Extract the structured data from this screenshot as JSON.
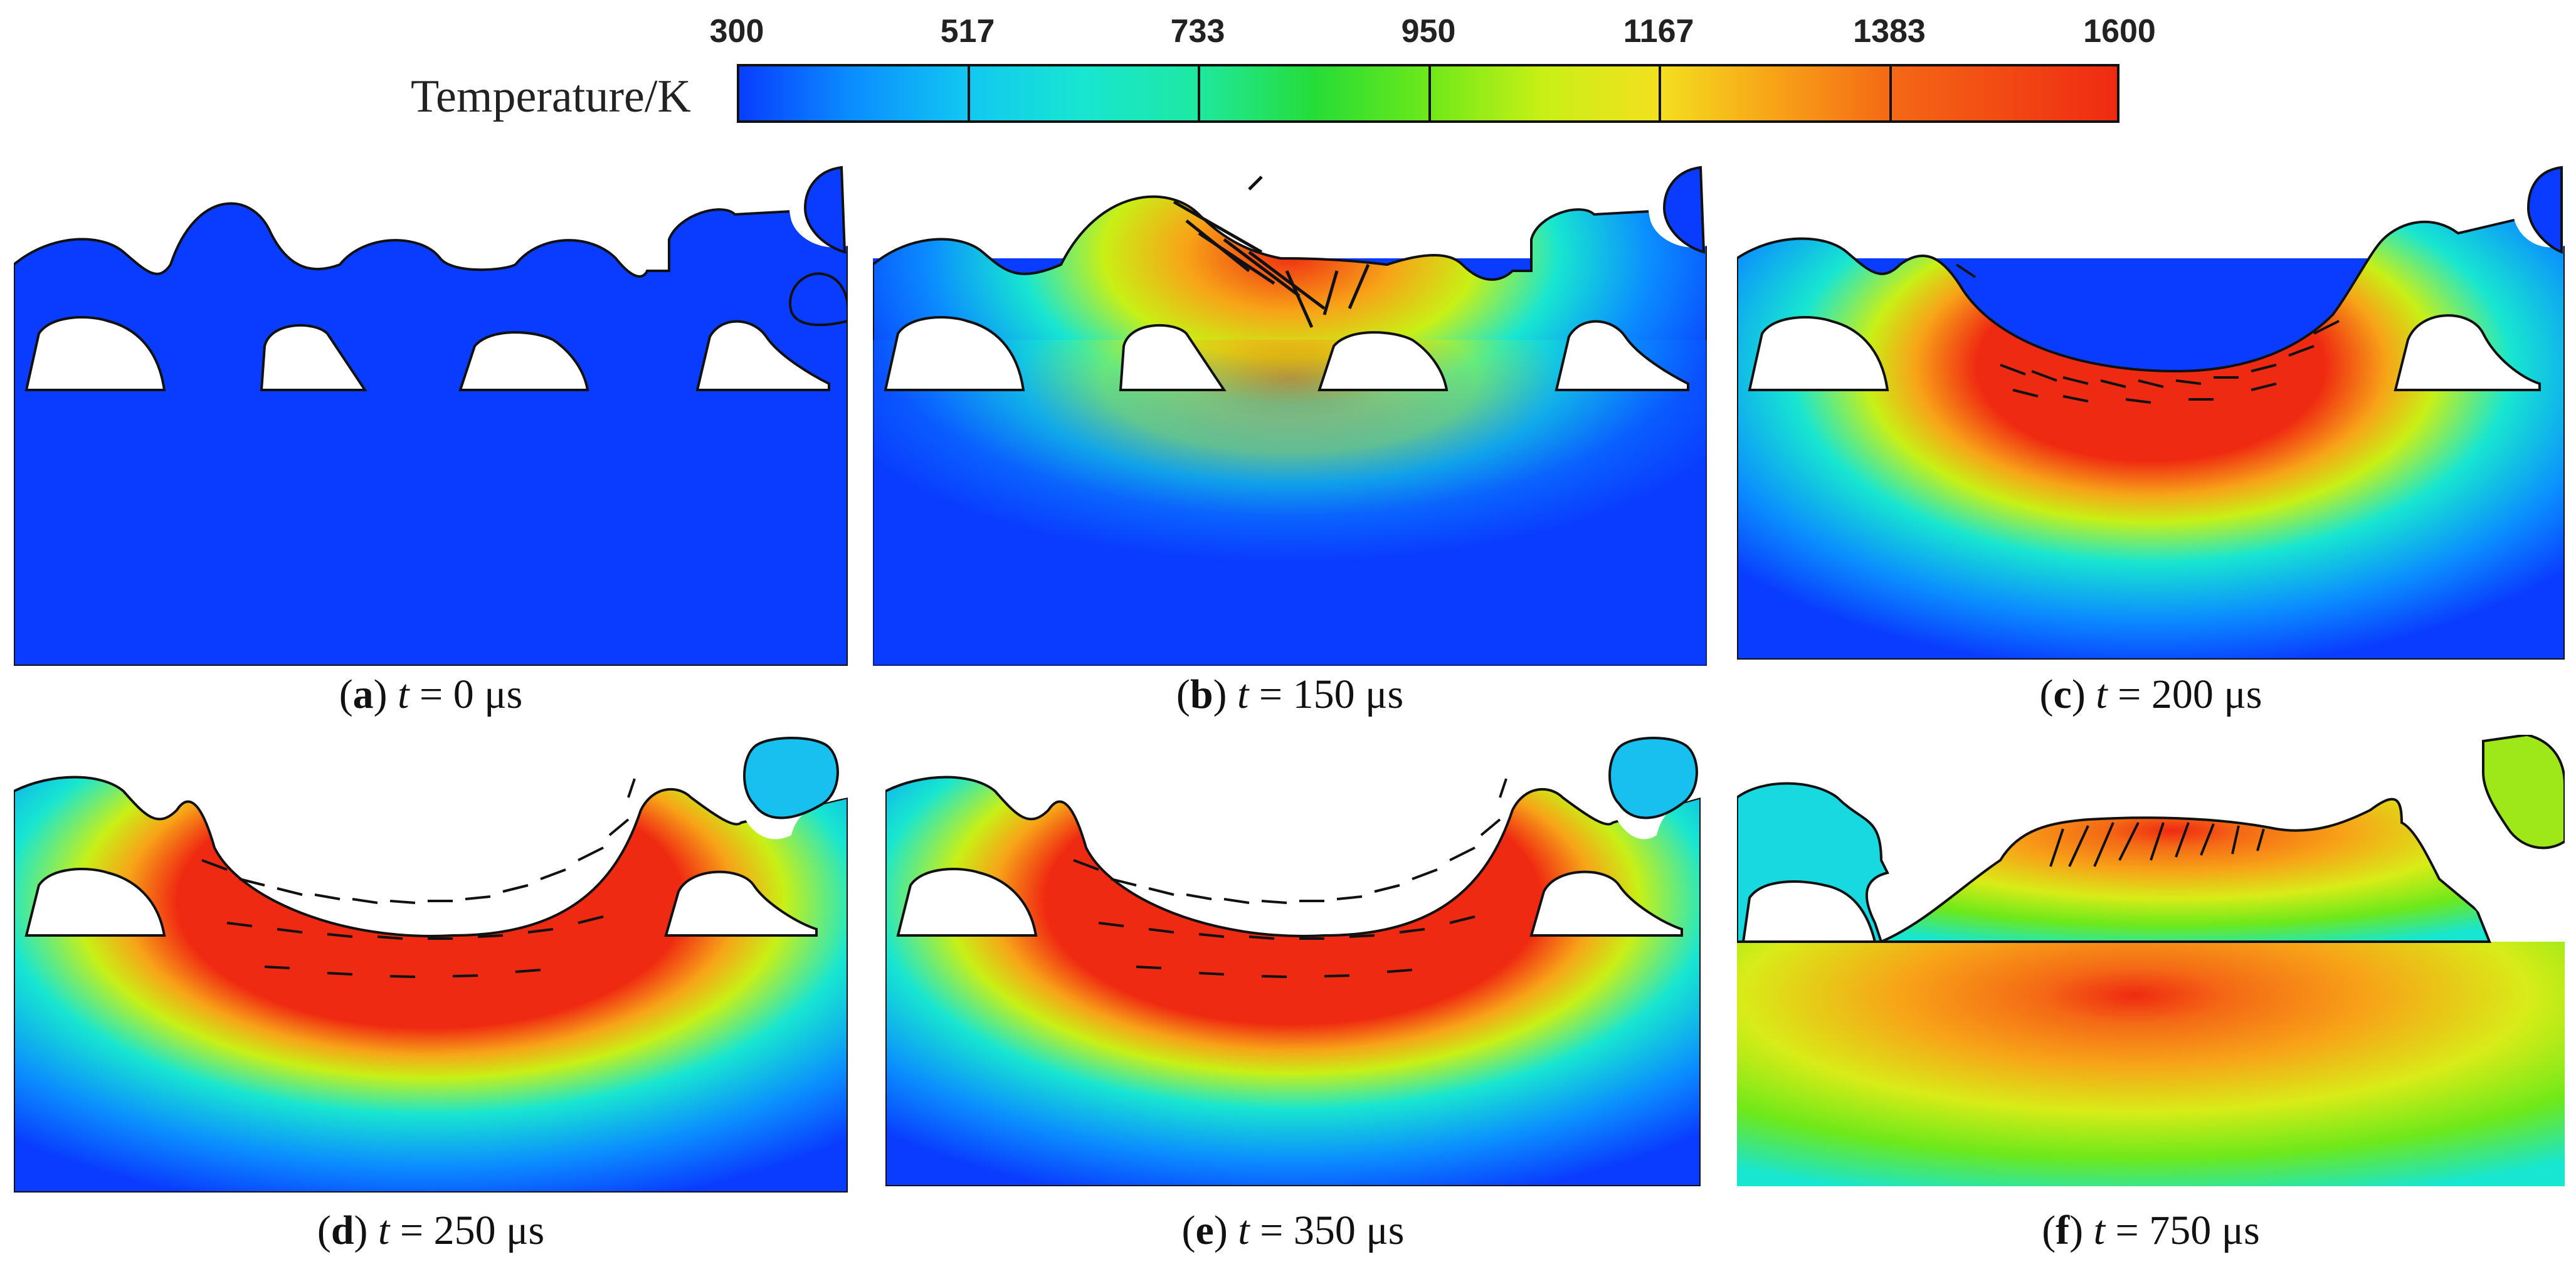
{
  "colorbar": {
    "label": "Temperature/K",
    "ticks": [
      "300",
      "517",
      "733",
      "950",
      "1167",
      "1383",
      "1600"
    ]
  },
  "panels": [
    {
      "letter": "a",
      "var": "t",
      "eq": "=",
      "value": "0",
      "unit": "μs"
    },
    {
      "letter": "b",
      "var": "t",
      "eq": "=",
      "value": "150",
      "unit": "μs"
    },
    {
      "letter": "c",
      "var": "t",
      "eq": "=",
      "value": "200",
      "unit": "μs"
    },
    {
      "letter": "d",
      "var": "t",
      "eq": "=",
      "value": "250",
      "unit": "μs"
    },
    {
      "letter": "e",
      "var": "t",
      "eq": "=",
      "value": "350",
      "unit": "μs"
    },
    {
      "letter": "f",
      "var": "t",
      "eq": "=",
      "value": "750",
      "unit": "μs"
    }
  ],
  "colors": {
    "cold": "#0a3cff",
    "hot": "#ef2a12"
  }
}
